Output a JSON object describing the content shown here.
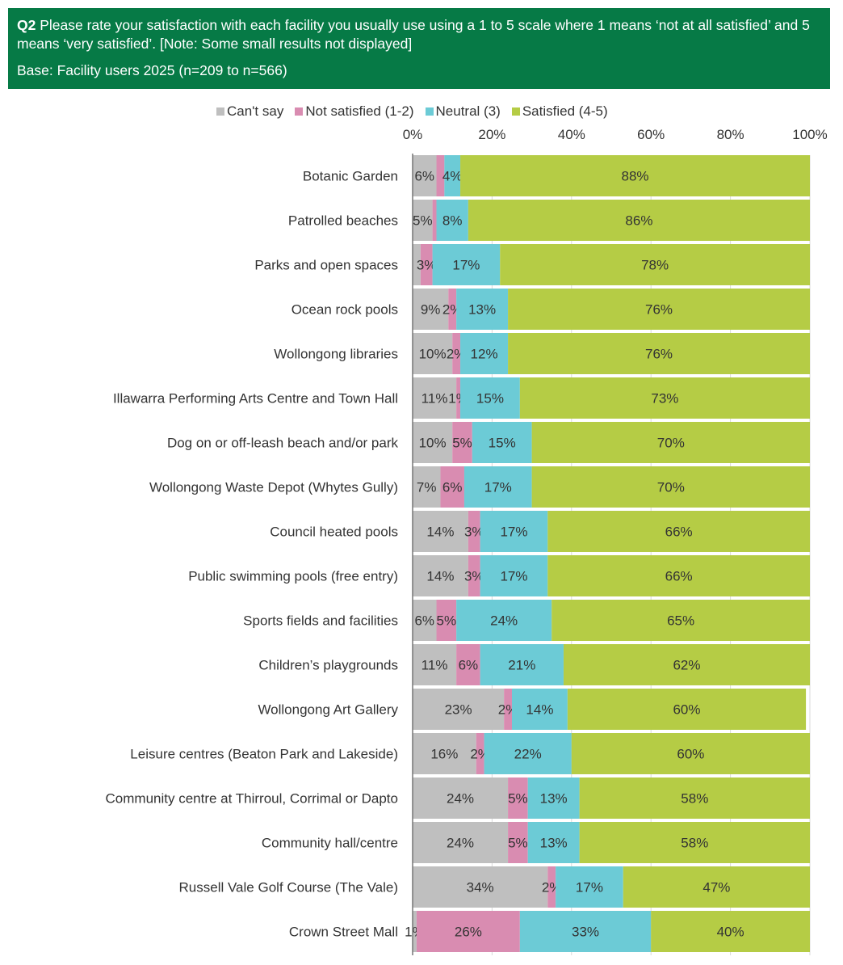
{
  "header": {
    "q_label": "Q2",
    "question": " Please rate your satisfaction with each facility you usually use using a 1 to 5 scale where 1 means ‘not at all satisfied’ and 5 means ‘very satisfied’. [Note: Some small results not displayed]",
    "base": "Base: Facility users 2025 (n=209 to n=566)",
    "background": "#067a46"
  },
  "chart_data": {
    "type": "bar",
    "orientation": "horizontal-stacked-100",
    "xlim": [
      0,
      100
    ],
    "ticks": [
      "0%",
      "20%",
      "40%",
      "60%",
      "80%",
      "100%"
    ],
    "legend_position": "top",
    "series": [
      {
        "name": "Can't say",
        "color": "#bfbfbf"
      },
      {
        "name": "Not satisfied (1-2)",
        "color": "#d98cb1"
      },
      {
        "name": "Neutral (3)",
        "color": "#6ccbd6"
      },
      {
        "name": "Satisfied (4-5)",
        "color": "#b5cc45"
      }
    ],
    "categories": [
      "Botanic Garden",
      "Patrolled beaches",
      "Parks and open spaces",
      "Ocean rock pools",
      "Wollongong libraries",
      "Illawarra Performing Arts Centre and Town Hall",
      "Dog on or off-leash beach and/or park",
      "Wollongong Waste Depot (Whytes Gully)",
      "Council heated pools",
      "Public swimming pools (free entry)",
      "Sports fields and facilities",
      "Children’s playgrounds",
      "Wollongong Art Gallery",
      "Leisure centres (Beaton Park and Lakeside)",
      "Community centre at Thirroul, Corrimal or Dapto",
      "Community hall/centre",
      "Russell Vale Golf Course (The Vale)",
      "Crown Street Mall"
    ],
    "values": [
      [
        6,
        2,
        4,
        88
      ],
      [
        5,
        1,
        8,
        86
      ],
      [
        2,
        3,
        17,
        78
      ],
      [
        9,
        2,
        13,
        76
      ],
      [
        10,
        2,
        12,
        76
      ],
      [
        11,
        1,
        15,
        73
      ],
      [
        10,
        5,
        15,
        70
      ],
      [
        7,
        6,
        17,
        70
      ],
      [
        14,
        3,
        17,
        66
      ],
      [
        14,
        3,
        17,
        66
      ],
      [
        6,
        5,
        24,
        65
      ],
      [
        11,
        6,
        21,
        62
      ],
      [
        23,
        2,
        14,
        60
      ],
      [
        16,
        2,
        22,
        60
      ],
      [
        24,
        5,
        13,
        58
      ],
      [
        24,
        5,
        13,
        58
      ],
      [
        34,
        2,
        17,
        47
      ],
      [
        1,
        26,
        33,
        40
      ]
    ],
    "labels": [
      [
        "6%",
        "",
        "4%",
        "88%"
      ],
      [
        "5%",
        "",
        "8%",
        "86%"
      ],
      [
        "",
        "3%",
        "17%",
        "78%"
      ],
      [
        "9%",
        "2%",
        "13%",
        "76%"
      ],
      [
        "10%",
        "2%",
        "12%",
        "76%"
      ],
      [
        "11%",
        "1%",
        "15%",
        "73%"
      ],
      [
        "10%",
        "5%",
        "15%",
        "70%"
      ],
      [
        "7%",
        "6%",
        "17%",
        "70%"
      ],
      [
        "14%",
        "3%",
        "17%",
        "66%"
      ],
      [
        "14%",
        "3%",
        "17%",
        "66%"
      ],
      [
        "6%",
        "5%",
        "24%",
        "65%"
      ],
      [
        "11%",
        "6%",
        "21%",
        "62%"
      ],
      [
        "23%",
        "2%",
        "14%",
        "60%"
      ],
      [
        "16%",
        "2%",
        "22%",
        "60%"
      ],
      [
        "24%",
        "5%",
        "13%",
        "58%"
      ],
      [
        "24%",
        "5%",
        "13%",
        "58%"
      ],
      [
        "34%",
        "2%",
        "17%",
        "47%"
      ],
      [
        "1%",
        "26%",
        "33%",
        "40%"
      ]
    ]
  }
}
